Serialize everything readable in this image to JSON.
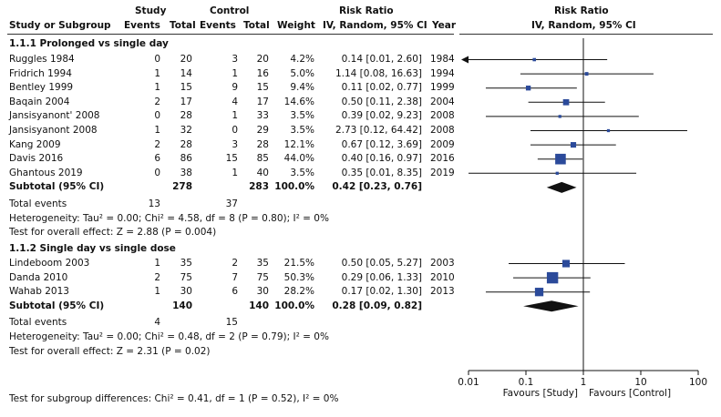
{
  "headers": {
    "study_group": "Study",
    "control_group": "Control",
    "risk_ratio": "Risk Ratio",
    "risk_ratio_plot": "Risk Ratio",
    "study_or_subgroup": "Study or Subgroup",
    "events1": "Events",
    "total1": "Total",
    "events2": "Events",
    "total2": "Total",
    "weight": "Weight",
    "method": "IV, Random, 95% CI",
    "year": "Year",
    "method_plot": "IV, Random, 95% CI"
  },
  "subgroups": [
    {
      "title": "1.1.1 Prolonged vs single day",
      "studies": [
        {
          "name": "Ruggles 1984",
          "e1": "0",
          "n1": "20",
          "e2": "3",
          "n2": "20",
          "weight": "4.2%",
          "ci": "0.14 [0.01, 2.60]",
          "year": "1984"
        },
        {
          "name": "Fridrich 1994",
          "e1": "1",
          "n1": "14",
          "e2": "1",
          "n2": "16",
          "weight": "5.0%",
          "ci": "1.14 [0.08, 16.63]",
          "year": "1994"
        },
        {
          "name": "Bentley 1999",
          "e1": "1",
          "n1": "15",
          "e2": "9",
          "n2": "15",
          "weight": "9.4%",
          "ci": "0.11 [0.02, 0.77]",
          "year": "1999"
        },
        {
          "name": "Baqain 2004",
          "e1": "2",
          "n1": "17",
          "e2": "4",
          "n2": "17",
          "weight": "14.6%",
          "ci": "0.50 [0.11, 2.38]",
          "year": "2004"
        },
        {
          "name": "Jansisyanont' 2008",
          "e1": "0",
          "n1": "28",
          "e2": "1",
          "n2": "33",
          "weight": "3.5%",
          "ci": "0.39 [0.02, 9.23]",
          "year": "2008"
        },
        {
          "name": "Jansisyanont 2008",
          "e1": "1",
          "n1": "32",
          "e2": "0",
          "n2": "29",
          "weight": "3.5%",
          "ci": "2.73 [0.12, 64.42]",
          "year": "2008"
        },
        {
          "name": "Kang 2009",
          "e1": "2",
          "n1": "28",
          "e2": "3",
          "n2": "28",
          "weight": "12.1%",
          "ci": "0.67 [0.12, 3.69]",
          "year": "2009"
        },
        {
          "name": "Davis 2016",
          "e1": "6",
          "n1": "86",
          "e2": "15",
          "n2": "85",
          "weight": "44.0%",
          "ci": "0.40 [0.16, 0.97]",
          "year": "2016"
        },
        {
          "name": "Ghantous 2019",
          "e1": "0",
          "n1": "38",
          "e2": "1",
          "n2": "40",
          "weight": "3.5%",
          "ci": "0.35 [0.01, 8.35]",
          "year": "2019"
        }
      ],
      "subtotal": {
        "label": "Subtotal (95% CI)",
        "n1": "278",
        "n2": "283",
        "weight": "100.0%",
        "ci": "0.42 [0.23, 0.76]"
      },
      "total_events": {
        "label": "Total events",
        "e1": "13",
        "e2": "37"
      },
      "heterogeneity": "Heterogeneity: Tau² = 0.00; Chi² = 4.58, df = 8 (P = 0.80); I² = 0%",
      "overall": "Test for overall effect: Z = 2.88 (P = 0.004)"
    },
    {
      "title": "1.1.2 Single day vs single dose",
      "studies": [
        {
          "name": "Lindeboom 2003",
          "e1": "1",
          "n1": "35",
          "e2": "2",
          "n2": "35",
          "weight": "21.5%",
          "ci": "0.50 [0.05, 5.27]",
          "year": "2003"
        },
        {
          "name": "Danda 2010",
          "e1": "2",
          "n1": "75",
          "e2": "7",
          "n2": "75",
          "weight": "50.3%",
          "ci": "0.29 [0.06, 1.33]",
          "year": "2010"
        },
        {
          "name": "Wahab 2013",
          "e1": "1",
          "n1": "30",
          "e2": "6",
          "n2": "30",
          "weight": "28.2%",
          "ci": "0.17 [0.02, 1.30]",
          "year": "2013"
        }
      ],
      "subtotal": {
        "label": "Subtotal (95% CI)",
        "n1": "140",
        "n2": "140",
        "weight": "100.0%",
        "ci": "0.28 [0.09, 0.82]"
      },
      "total_events": {
        "label": "Total events",
        "e1": "4",
        "e2": "15"
      },
      "heterogeneity": "Heterogeneity: Tau² = 0.00; Chi² = 0.48, df = 2 (P = 0.79); I² = 0%",
      "overall": "Test for overall effect: Z = 2.31 (P = 0.02)"
    }
  ],
  "subgroup_differences": "Test for subgroup differences: Chi² = 0.41, df = 1 (P = 0.52), I² = 0%",
  "chart_data": {
    "type": "forest",
    "title": "Risk Ratio IV, Random, 95% CI",
    "scale": "log",
    "xlim": [
      0.01,
      100
    ],
    "ticks": [
      0.01,
      0.1,
      1,
      10,
      100
    ],
    "tick_labels": [
      "0.01",
      "0.1",
      "1",
      "10",
      "100"
    ],
    "favours_left": "Favours [Study]",
    "favours_right": "Favours [Control]",
    "series": [
      {
        "name": "1.1.1 Prolonged vs single day",
        "studies": [
          {
            "label": "Ruggles 1984",
            "rr": 0.14,
            "lo": 0.01,
            "hi": 2.6,
            "weight": 4.2
          },
          {
            "label": "Fridrich 1994",
            "rr": 1.14,
            "lo": 0.08,
            "hi": 16.63,
            "weight": 5.0
          },
          {
            "label": "Bentley 1999",
            "rr": 0.11,
            "lo": 0.02,
            "hi": 0.77,
            "weight": 9.4
          },
          {
            "label": "Baqain 2004",
            "rr": 0.5,
            "lo": 0.11,
            "hi": 2.38,
            "weight": 14.6
          },
          {
            "label": "Jansisyanont' 2008",
            "rr": 0.39,
            "lo": 0.02,
            "hi": 9.23,
            "weight": 3.5
          },
          {
            "label": "Jansisyanont 2008",
            "rr": 2.73,
            "lo": 0.12,
            "hi": 64.42,
            "weight": 3.5
          },
          {
            "label": "Kang 2009",
            "rr": 0.67,
            "lo": 0.12,
            "hi": 3.69,
            "weight": 12.1
          },
          {
            "label": "Davis 2016",
            "rr": 0.4,
            "lo": 0.16,
            "hi": 0.97,
            "weight": 44.0
          },
          {
            "label": "Ghantous 2019",
            "rr": 0.35,
            "lo": 0.01,
            "hi": 8.35,
            "weight": 3.5
          }
        ],
        "pooled": {
          "rr": 0.42,
          "lo": 0.23,
          "hi": 0.76
        }
      },
      {
        "name": "1.1.2 Single day vs single dose",
        "studies": [
          {
            "label": "Lindeboom 2003",
            "rr": 0.5,
            "lo": 0.05,
            "hi": 5.27,
            "weight": 21.5
          },
          {
            "label": "Danda 2010",
            "rr": 0.29,
            "lo": 0.06,
            "hi": 1.33,
            "weight": 50.3
          },
          {
            "label": "Wahab 2013",
            "rr": 0.17,
            "lo": 0.02,
            "hi": 1.3,
            "weight": 28.2
          }
        ],
        "pooled": {
          "rr": 0.28,
          "lo": 0.09,
          "hi": 0.82
        }
      }
    ]
  }
}
